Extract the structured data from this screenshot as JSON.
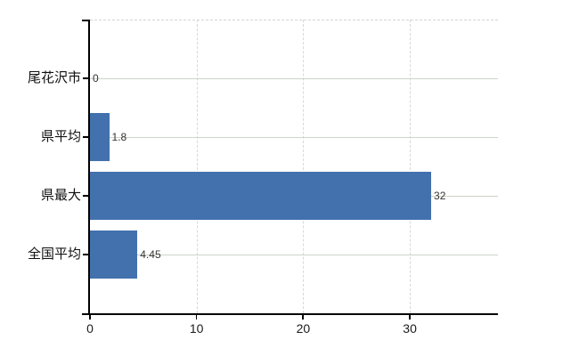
{
  "chart_data": {
    "type": "bar",
    "orientation": "horizontal",
    "title": "",
    "xlabel": "",
    "ylabel": "",
    "categories": [
      "尾花沢市",
      "県平均",
      "県最大",
      "全国平均"
    ],
    "values": [
      0,
      1.8,
      32,
      4.45
    ],
    "value_labels": [
      "0",
      "1.8",
      "32",
      "4.45"
    ],
    "x_ticks": [
      0,
      10,
      20,
      30
    ],
    "x_tick_labels": [
      "0",
      "10",
      "20",
      "30"
    ],
    "xlim": [
      0,
      38.3
    ],
    "grid": true,
    "legend": false,
    "colors": {
      "bar": "#4271ad",
      "axis": "#000000",
      "hgrid": "#cdd4ca",
      "vgrid": "#d8d8d8",
      "top_border": "#d4d4d4",
      "category_text": "#111111",
      "value_text": "#333333",
      "tick_text": "#1b1b1b",
      "background": "#ffffff"
    }
  }
}
